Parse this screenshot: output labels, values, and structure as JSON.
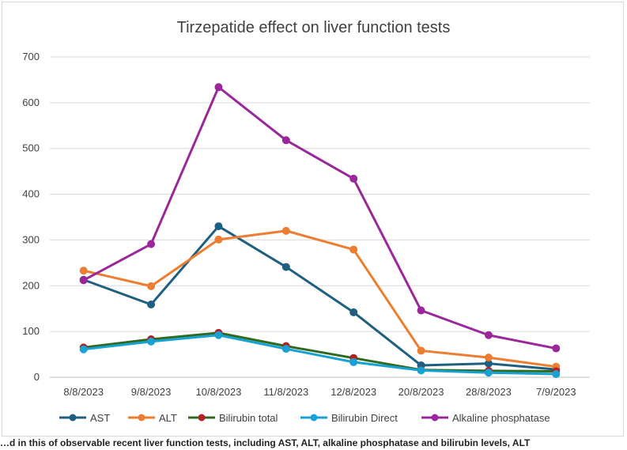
{
  "chart_data": {
    "type": "line",
    "title": "Tirzepatide effect on liver function tests",
    "xlabel": "",
    "ylabel": "",
    "ylim": [
      0,
      700
    ],
    "yticks": [
      0,
      100,
      200,
      300,
      400,
      500,
      600,
      700
    ],
    "grid": true,
    "legend": "bottom",
    "categories": [
      "8/8/2023",
      "9/8/2023",
      "10/8/2023",
      "11/8/2023",
      "12/8/2023",
      "20/8/2023",
      "28/8/2023",
      "7/9/2023"
    ],
    "series": [
      {
        "name": "AST",
        "color": "#1f5f7f",
        "values": [
          213,
          159,
          330,
          241,
          142,
          26,
          30,
          17
        ]
      },
      {
        "name": "ALT",
        "color": "#ed7d31",
        "values": [
          233,
          199,
          301,
          320,
          279,
          58,
          43,
          23
        ]
      },
      {
        "name": "Bilirubin total",
        "color": "#2e6b1f",
        "marker": "#b22222",
        "values": [
          65,
          83,
          97,
          68,
          42,
          16,
          14,
          13
        ]
      },
      {
        "name": "Bilirubin Direct",
        "color": "#18a1d3",
        "values": [
          61,
          78,
          92,
          62,
          33,
          15,
          10,
          7
        ]
      },
      {
        "name": "Alkaline phosphatase",
        "color": "#9b279b",
        "values": [
          212,
          291,
          634,
          518,
          434,
          146,
          92,
          63
        ]
      }
    ]
  },
  "caption": "…d in this of observable recent liver function tests, including AST, ALT, alkaline phosphatase and bilirubin levels, ALT"
}
